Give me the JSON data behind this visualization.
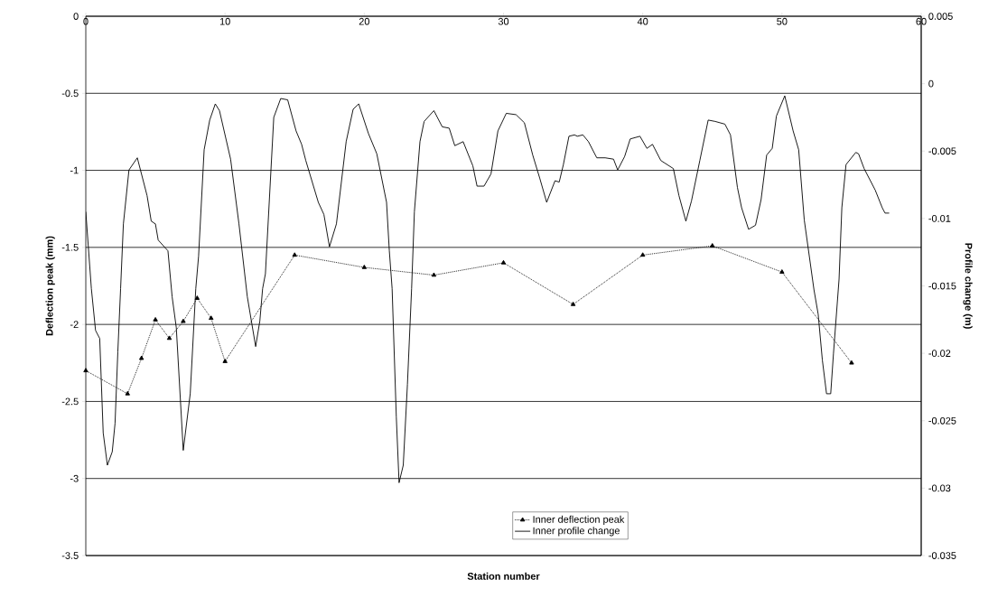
{
  "chart_data": {
    "type": "line",
    "xlabel": "Station number",
    "ylabel": "Deflection peak (mm)",
    "y2label": "Profile change (m)",
    "xlim": [
      0,
      60
    ],
    "xticks": [
      0,
      10,
      20,
      30,
      40,
      50,
      60
    ],
    "ylim": [
      -3.5,
      0
    ],
    "yticks": [
      0,
      -0.5,
      -1,
      -1.5,
      -2,
      -2.5,
      -3,
      -3.5
    ],
    "y2lim": [
      -0.035,
      0.005
    ],
    "y2ticks": [
      0.005,
      0,
      -0.005,
      -0.01,
      -0.015,
      -0.02,
      -0.025,
      -0.03,
      -0.035
    ],
    "grid": "y",
    "legend": "bottom",
    "series": [
      {
        "name": "Inner deflection peak",
        "color": "#000000",
        "marker": "triangle",
        "line_style": "dotted",
        "x": [
          0,
          3,
          4,
          5,
          6,
          7,
          8,
          9,
          10,
          15,
          20,
          25,
          30,
          35,
          40,
          45,
          50,
          55
        ],
        "values": [
          -2.3,
          -2.45,
          -2.22,
          -1.97,
          -2.09,
          -1.98,
          -1.83,
          -1.96,
          -2.24,
          -1.55,
          -1.63,
          -1.68,
          -1.6,
          -1.87,
          -1.55,
          -1.49,
          -1.66,
          -2.25
        ]
      },
      {
        "name": "Inner profile change",
        "color": "#000000",
        "marker": "none",
        "line_style": "solid",
        "axis": "y2",
        "x": [
          0,
          0.4,
          0.7,
          1.0,
          1.25,
          1.55,
          1.9,
          2.1,
          2.3,
          2.5,
          2.7,
          3.1,
          3.7,
          4.4,
          4.7,
          5.0,
          5.2,
          5.9,
          6.2,
          6.5,
          7.0,
          7.5,
          7.9,
          8.1,
          8.5,
          8.9,
          9.3,
          9.6,
          10.4,
          11.0,
          11.6,
          12.2,
          12.5,
          12.7,
          12.9,
          13.5,
          14.0,
          14.5,
          15.1,
          15.5,
          15.8,
          16.7,
          17.1,
          17.5,
          18.0,
          18.7,
          19.2,
          19.6,
          20.3,
          20.9,
          21.6,
          21.8,
          22.0,
          22.3,
          22.5,
          22.8,
          23.1,
          23.4,
          23.6,
          24.0,
          24.3,
          25.0,
          25.6,
          26.1,
          26.5,
          27.1,
          27.8,
          28.1,
          28.6,
          29.1,
          29.6,
          30.2,
          30.9,
          31.5,
          32.1,
          32.6,
          33.1,
          33.7,
          34.0,
          34.3,
          34.7,
          35.1,
          35.3,
          35.7,
          36.1,
          36.7,
          37.3,
          37.9,
          38.2,
          38.7,
          39.1,
          39.8,
          40.3,
          40.7,
          41.3,
          42.2,
          42.6,
          43.1,
          43.5,
          44.1,
          44.7,
          45.2,
          45.9,
          46.3,
          46.8,
          47.1,
          47.6,
          48.1,
          48.5,
          48.9,
          49.3,
          49.6,
          50.2,
          50.8,
          51.2,
          51.6,
          52.3,
          52.6,
          52.9,
          53.2,
          53.5,
          53.7,
          54.1,
          54.3,
          54.6,
          55.3,
          55.5,
          55.9,
          56.7,
          57.2,
          57.4,
          57.7
        ],
        "values": [
          -0.0095,
          -0.0152,
          -0.0183,
          -0.0189,
          -0.0259,
          -0.0283,
          -0.0273,
          -0.0252,
          -0.0199,
          -0.0152,
          -0.0104,
          -0.0064,
          -0.0055,
          -0.0083,
          -0.0102,
          -0.0104,
          -0.0116,
          -0.0124,
          -0.0158,
          -0.0181,
          -0.0272,
          -0.023,
          -0.0152,
          -0.0128,
          -0.0049,
          -0.0027,
          -0.0015,
          -0.002,
          -0.0056,
          -0.0104,
          -0.0158,
          -0.0195,
          -0.0176,
          -0.0152,
          -0.0141,
          -0.0025,
          -0.0011,
          -0.0012,
          -0.0035,
          -0.0045,
          -0.0057,
          -0.0088,
          -0.0097,
          -0.0121,
          -0.0104,
          -0.0043,
          -0.0019,
          -0.0015,
          -0.0037,
          -0.0052,
          -0.0088,
          -0.0124,
          -0.0152,
          -0.0247,
          -0.0296,
          -0.0283,
          -0.0223,
          -0.0152,
          -0.0095,
          -0.0043,
          -0.0028,
          -0.002,
          -0.0032,
          -0.0033,
          -0.0046,
          -0.0043,
          -0.0061,
          -0.0076,
          -0.0076,
          -0.0067,
          -0.0035,
          -0.0022,
          -0.0023,
          -0.0029,
          -0.0053,
          -0.007,
          -0.0088,
          -0.0072,
          -0.0073,
          -0.006,
          -0.0039,
          -0.0038,
          -0.0039,
          -0.0038,
          -0.0043,
          -0.0055,
          -0.0055,
          -0.0056,
          -0.0064,
          -0.0054,
          -0.0041,
          -0.0039,
          -0.0048,
          -0.0045,
          -0.0057,
          -0.0063,
          -0.0083,
          -0.0102,
          -0.0087,
          -0.0057,
          -0.0027,
          -0.0028,
          -0.003,
          -0.0038,
          -0.0077,
          -0.0092,
          -0.0108,
          -0.0105,
          -0.0086,
          -0.0053,
          -0.0048,
          -0.0024,
          -0.0009,
          -0.0035,
          -0.0049,
          -0.0101,
          -0.0153,
          -0.0171,
          -0.0205,
          -0.023,
          -0.023,
          -0.02,
          -0.0145,
          -0.0092,
          -0.006,
          -0.0051,
          -0.0052,
          -0.0063,
          -0.0079,
          -0.0092,
          -0.0096,
          -0.0096
        ]
      }
    ]
  }
}
